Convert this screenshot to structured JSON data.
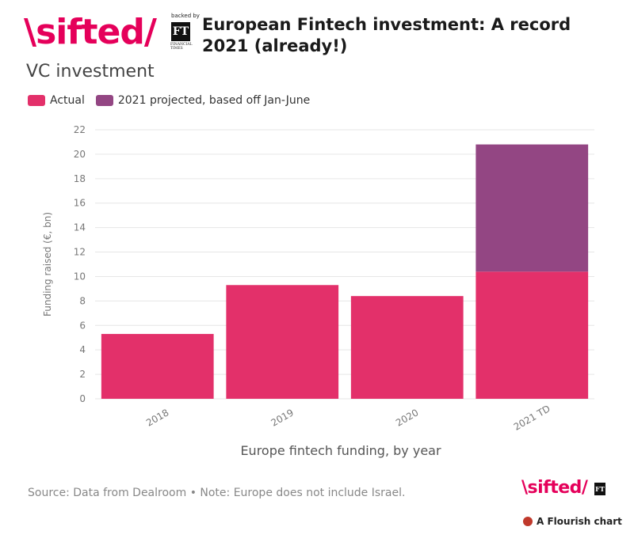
{
  "header": {
    "logo_text": "\\sifted/",
    "backed_by": "backed by",
    "ft_logo": "FT",
    "ft_sub": "FINANCIAL TIMES",
    "title": "European Fintech investment: A record 2021 (already!)"
  },
  "subtitle": "VC investment",
  "colors": {
    "actual": "#e3306a",
    "projected": "#934683",
    "grid": "#e6e6e6",
    "brand": "#e5005a"
  },
  "legend": [
    {
      "label": "Actual",
      "color": "#e3306a"
    },
    {
      "label": "2021 projected, based off Jan-June",
      "color": "#934683"
    }
  ],
  "chart_data": {
    "type": "bar",
    "stacked": true,
    "categories": [
      "2018",
      "2019",
      "2020",
      "2021 TD"
    ],
    "series": [
      {
        "name": "Actual",
        "values": [
          5.3,
          9.3,
          8.4,
          10.4
        ],
        "color": "#e3306a"
      },
      {
        "name": "2021 projected, based off Jan-June",
        "values": [
          0,
          0,
          0,
          10.4
        ],
        "color": "#934683"
      }
    ],
    "ylabel": "Funding raised (€, bn)",
    "xlabel": "Europe fintech funding, by year",
    "ylim": [
      0,
      22
    ],
    "yticks": [
      0,
      2,
      4,
      6,
      8,
      10,
      12,
      14,
      16,
      18,
      20,
      22
    ],
    "grid": true,
    "legend_position": "top-left"
  },
  "footer": {
    "note": "Source: Data from Dealroom • Note: Europe does not include Israel.",
    "logo_text": "\\sifted/",
    "ft_logo": "FT",
    "flourish": "A Flourish chart"
  }
}
